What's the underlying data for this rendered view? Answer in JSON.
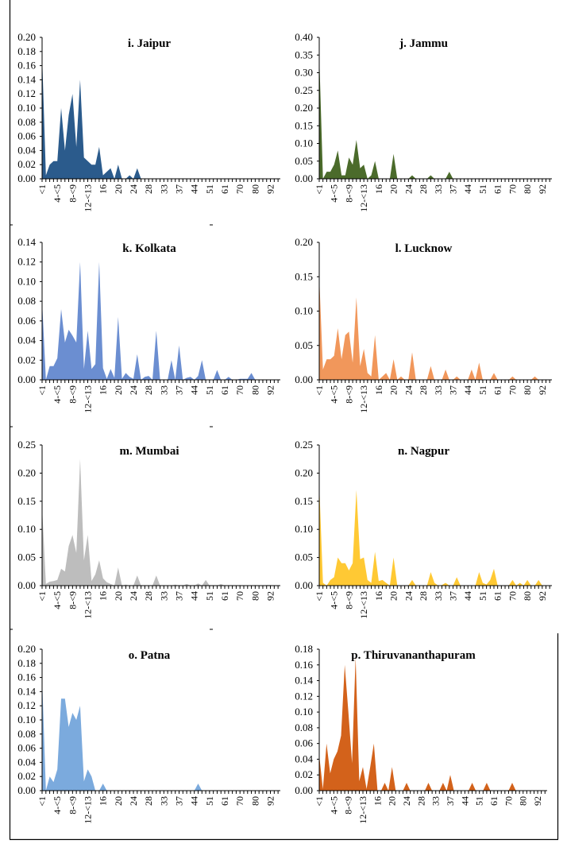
{
  "chart_data": [
    {
      "type": "area",
      "title": "i. Jaipur",
      "color": "#2B5B8C",
      "ylim": [
        0,
        0.2
      ],
      "yticks": [
        0,
        0.02,
        0.04,
        0.06,
        0.08,
        0.1,
        0.12,
        0.14,
        0.16,
        0.18,
        0.2
      ],
      "values": [
        0.175,
        0.005,
        0.02,
        0.025,
        0.025,
        0.1,
        0.04,
        0.09,
        0.12,
        0.045,
        0.14,
        0.03,
        0.025,
        0.02,
        0.02,
        0.045,
        0.005,
        0.01,
        0.015,
        0,
        0.02,
        0,
        0,
        0.005,
        0,
        0.015,
        0,
        0,
        0,
        0,
        0,
        0,
        0,
        0,
        0,
        0,
        0,
        0,
        0,
        0,
        0,
        0,
        0,
        0,
        0,
        0,
        0,
        0,
        0,
        0,
        0,
        0,
        0,
        0,
        0,
        0,
        0,
        0,
        0,
        0,
        0,
        0,
        0
      ]
    },
    {
      "type": "area",
      "title": "j. Jammu",
      "color": "#4B6B2B",
      "ylim": [
        0,
        0.4
      ],
      "yticks": [
        0,
        0.05,
        0.1,
        0.15,
        0.2,
        0.25,
        0.3,
        0.35,
        0.4
      ],
      "values": [
        0.35,
        0,
        0.02,
        0.02,
        0.04,
        0.08,
        0.01,
        0.01,
        0.06,
        0.04,
        0.11,
        0.03,
        0.04,
        0,
        0.01,
        0.05,
        0,
        0,
        0,
        0,
        0.07,
        0,
        0,
        0,
        0,
        0.01,
        0,
        0,
        0,
        0,
        0.01,
        0,
        0,
        0,
        0,
        0.02,
        0,
        0,
        0,
        0,
        0,
        0,
        0,
        0,
        0,
        0,
        0,
        0,
        0,
        0,
        0,
        0,
        0,
        0,
        0,
        0,
        0,
        0,
        0,
        0,
        0,
        0,
        0
      ]
    },
    {
      "type": "area",
      "title": "k. Kolkata",
      "color": "#6B8ED1",
      "ylim": [
        0,
        0.14
      ],
      "yticks": [
        0,
        0.02,
        0.04,
        0.06,
        0.08,
        0.1,
        0.12,
        0.14
      ],
      "values": [
        0.08,
        0,
        0.014,
        0.014,
        0.022,
        0.072,
        0.038,
        0.051,
        0.045,
        0.038,
        0.12,
        0.011,
        0.05,
        0.011,
        0.016,
        0.12,
        0.012,
        0.001,
        0.011,
        0.002,
        0.064,
        0.001,
        0.007,
        0.003,
        0.001,
        0.026,
        0,
        0.003,
        0.004,
        0,
        0.05,
        0,
        0,
        0,
        0.02,
        0,
        0.035,
        0,
        0.002,
        0.003,
        0,
        0.004,
        0.02,
        0,
        0,
        0,
        0.01,
        0,
        0,
        0.003,
        0,
        0,
        0.001,
        0.001,
        0.001,
        0.007,
        0,
        0,
        0,
        0,
        0,
        0,
        0
      ]
    },
    {
      "type": "area",
      "title": "l. Lucknow",
      "color": "#F1975B",
      "ylim": [
        0,
        0.2
      ],
      "yticks": [
        0,
        0.05,
        0.1,
        0.15,
        0.2
      ],
      "values": [
        0.15,
        0.015,
        0.03,
        0.03,
        0.035,
        0.075,
        0.03,
        0.065,
        0.07,
        0.025,
        0.12,
        0.02,
        0.045,
        0.01,
        0.005,
        0.065,
        0,
        0.005,
        0.01,
        0,
        0.03,
        0,
        0.005,
        0,
        0,
        0.04,
        0,
        0,
        0,
        0,
        0.02,
        0,
        0,
        0,
        0.015,
        0,
        0,
        0.005,
        0,
        0,
        0,
        0.015,
        0,
        0.025,
        0,
        0,
        0,
        0.01,
        0,
        0,
        0,
        0,
        0.005,
        0,
        0,
        0,
        0,
        0,
        0.005,
        0,
        0,
        0,
        0
      ]
    },
    {
      "type": "area",
      "title": "m. Mumbai",
      "color": "#BDBDBD",
      "ylim": [
        0,
        0.25
      ],
      "yticks": [
        0,
        0.05,
        0.1,
        0.15,
        0.2,
        0.25
      ],
      "values": [
        0.14,
        0.003,
        0.007,
        0.008,
        0.01,
        0.03,
        0.025,
        0.07,
        0.09,
        0.058,
        0.225,
        0.045,
        0.09,
        0.008,
        0.02,
        0.045,
        0.013,
        0.006,
        0.003,
        0,
        0.032,
        0,
        0.002,
        0,
        0,
        0.018,
        0,
        0,
        0,
        0,
        0.018,
        0,
        0,
        0,
        0,
        0.002,
        0,
        0,
        0.003,
        0,
        0,
        0.004,
        0,
        0.01,
        0,
        0,
        0,
        0.003,
        0,
        0,
        0,
        0,
        0.001,
        0,
        0,
        0,
        0.001,
        0,
        0,
        0.001,
        0.001,
        0,
        0
      ]
    },
    {
      "type": "area",
      "title": "n. Nagpur",
      "color": "#FFC934",
      "ylim": [
        0,
        0.25
      ],
      "yticks": [
        0,
        0.05,
        0.1,
        0.15,
        0.2,
        0.25
      ],
      "values": [
        0.18,
        0.005,
        0,
        0.01,
        0.015,
        0.05,
        0.04,
        0.04,
        0.027,
        0.04,
        0.17,
        0.047,
        0.05,
        0.01,
        0.005,
        0.06,
        0.008,
        0.01,
        0.005,
        0,
        0.05,
        0,
        0,
        0,
        0,
        0.01,
        0,
        0,
        0,
        0,
        0.024,
        0.005,
        0,
        0.001,
        0.005,
        0,
        0,
        0.015,
        0,
        0,
        0,
        0,
        0,
        0.024,
        0.005,
        0.002,
        0.01,
        0.03,
        0,
        0,
        0,
        0,
        0.01,
        0,
        0.005,
        0,
        0.01,
        0,
        0,
        0.01,
        0,
        0,
        0
      ]
    },
    {
      "type": "area",
      "title": "o. Patna",
      "color": "#7BAADD",
      "ylim": [
        0,
        0.2
      ],
      "yticks": [
        0,
        0.02,
        0.04,
        0.06,
        0.08,
        0.1,
        0.12,
        0.14,
        0.16,
        0.18,
        0.2
      ],
      "values": [
        0.16,
        0,
        0.02,
        0.012,
        0.03,
        0.13,
        0.13,
        0.09,
        0.11,
        0.1,
        0.12,
        0.013,
        0.03,
        0.02,
        0,
        0,
        0.01,
        0,
        0,
        0,
        0,
        0,
        0,
        0,
        0,
        0,
        0,
        0,
        0,
        0,
        0,
        0,
        0,
        0,
        0,
        0,
        0,
        0,
        0,
        0,
        0,
        0.01,
        0,
        0,
        0,
        0,
        0,
        0,
        0,
        0,
        0,
        0,
        0,
        0,
        0,
        0,
        0,
        0,
        0,
        0,
        0,
        0,
        0
      ]
    },
    {
      "type": "area",
      "title": "p. Thiruvananthapuram",
      "color": "#D3621B",
      "ylim": [
        0,
        0.18
      ],
      "yticks": [
        0,
        0.02,
        0.04,
        0.06,
        0.08,
        0.1,
        0.12,
        0.14,
        0.16,
        0.18
      ],
      "values": [
        0.045,
        0.002,
        0.06,
        0.022,
        0.04,
        0.05,
        0.07,
        0.16,
        0.1,
        0.035,
        0.17,
        0.012,
        0.03,
        0.002,
        0.03,
        0.06,
        0,
        0,
        0.01,
        0,
        0.03,
        0,
        0,
        0,
        0.01,
        0,
        0,
        0,
        0,
        0,
        0.01,
        0,
        0,
        0,
        0.01,
        0,
        0.02,
        0,
        0,
        0,
        0,
        0,
        0.01,
        0,
        0,
        0,
        0.01,
        0,
        0,
        0,
        0,
        0,
        0,
        0.01,
        0,
        0,
        0,
        0,
        0,
        0,
        0,
        0,
        0
      ]
    }
  ],
  "x_tick_labels": [
    "<1",
    "4-<5",
    "8-<9",
    "12-<13",
    "16",
    "20",
    "24",
    "28",
    "33",
    "37",
    "44",
    "51",
    "61",
    "70",
    "80",
    "92"
  ]
}
